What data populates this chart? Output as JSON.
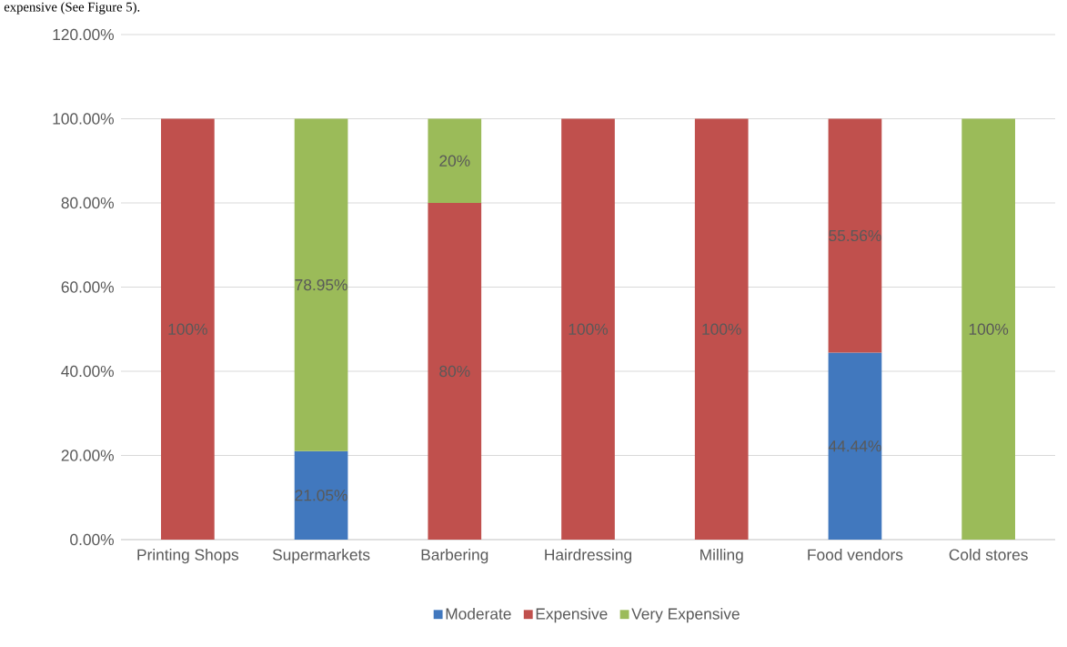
{
  "chart_data": {
    "type": "bar",
    "stacked": true,
    "annotations": [
      "expensive (See Figure 5)."
    ],
    "categories": [
      "Printing Shops",
      "Supermarkets",
      "Barbering",
      "Hairdressing",
      "Milling",
      "Food vendors",
      "Cold stores"
    ],
    "series": [
      {
        "name": "Moderate",
        "color": "#4178be",
        "values": [
          null,
          21.05,
          null,
          null,
          null,
          44.44,
          null
        ],
        "value_labels": [
          null,
          "21.05%",
          null,
          null,
          null,
          "44.44%",
          null
        ]
      },
      {
        "name": "Expensive",
        "color": "#c0504d",
        "values": [
          100,
          null,
          80,
          100,
          100,
          55.56,
          null
        ],
        "value_labels": [
          "100%",
          null,
          "80%",
          "100%",
          "100%",
          "55.56%",
          null
        ]
      },
      {
        "name": "Very Expensive",
        "color": "#9bbb59",
        "values": [
          null,
          78.95,
          20,
          null,
          null,
          null,
          100
        ],
        "value_labels": [
          null,
          "78.95%",
          "20%",
          null,
          null,
          null,
          "100%"
        ]
      }
    ],
    "ylim": [
      0,
      120
    ],
    "yticks": [
      {
        "value": 0,
        "label": "0.00%"
      },
      {
        "value": 20,
        "label": "20.00%"
      },
      {
        "value": 40,
        "label": "40.00%"
      },
      {
        "value": 60,
        "label": "60.00%"
      },
      {
        "value": 80,
        "label": "80.00%"
      },
      {
        "value": 100,
        "label": "100.00%"
      },
      {
        "value": 120,
        "label": "120.00%"
      }
    ],
    "grid": "y",
    "legend": "bottom"
  }
}
